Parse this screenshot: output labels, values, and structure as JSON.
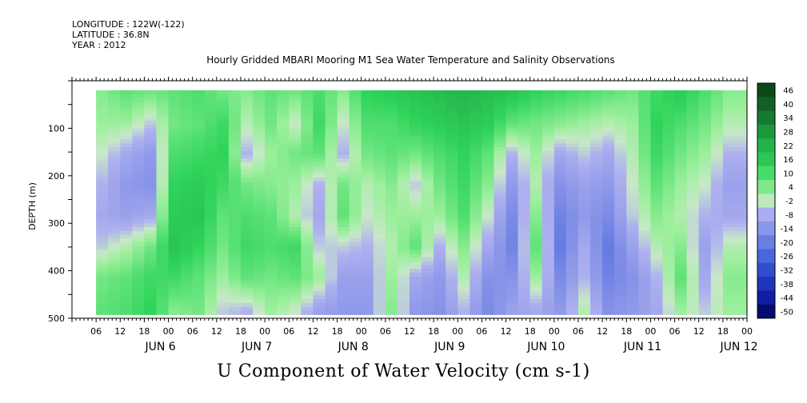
{
  "header": {
    "longitude": "LONGITUDE : 122W(-122)",
    "latitude": "LATITUDE : 36.8N",
    "year": "YEAR : 2012",
    "plot_title": "Hourly Gridded MBARI Mooring M1 Sea Water Temperature and Salinity Observations"
  },
  "variable_title": "U Component of Water Velocity (cm s-1)",
  "chart_data": {
    "type": "heatmap",
    "title": "Hourly Gridded MBARI Mooring M1 Sea Water Temperature and Salinity Observations",
    "subtitle": "U Component of Water Velocity (cm s-1)",
    "xlabel": "",
    "ylabel": "DEPTH (m)",
    "x_range_hours": [
      0,
      168
    ],
    "x_start": "2012-06-05 00:00",
    "y_range": [
      0,
      500
    ],
    "y_reversed": true,
    "y_ticks": [
      100,
      200,
      300,
      400,
      500
    ],
    "x_hour_labels": [
      "06",
      "12",
      "18",
      "00",
      "06",
      "12",
      "18",
      "00",
      "06",
      "12",
      "18",
      "00",
      "06",
      "12",
      "18",
      "00",
      "06",
      "12",
      "18",
      "00",
      "06",
      "12",
      "18",
      "00",
      "06",
      "12",
      "18",
      "00"
    ],
    "day_labels": [
      "JUN 6",
      "JUN 7",
      "JUN 8",
      "JUN 9",
      "JUN 10",
      "JUN 11",
      "JUN 12"
    ],
    "colorbar_levels": [
      46,
      40,
      34,
      28,
      22,
      16,
      10,
      4,
      -2,
      -8,
      -14,
      -20,
      -26,
      -32,
      -38,
      -44,
      -50
    ],
    "colorbar_range": [
      -50,
      52
    ],
    "colors": {
      "strong_positive": "#0b3d0b",
      "positive": "#22c44a",
      "weak_positive": "#8fe89a",
      "weak_negative": "#a9a9ee",
      "negative": "#3a5ad8",
      "strong_negative": "#00006a"
    },
    "column_profiles_description_values": [
      {
        "hour": 6,
        "u": [
          6,
          4,
          0,
          -4,
          -6,
          -2,
          8,
          10
        ]
      },
      {
        "hour": 12,
        "u": [
          10,
          4,
          -6,
          -10,
          -8,
          2,
          10,
          12
        ]
      },
      {
        "hour": 18,
        "u": [
          8,
          -2,
          -10,
          -12,
          -6,
          8,
          14,
          16
        ]
      },
      {
        "hour": 24,
        "u": [
          10,
          8,
          12,
          16,
          18,
          20,
          14,
          6
        ]
      },
      {
        "hour": 30,
        "u": [
          12,
          10,
          14,
          18,
          20,
          16,
          10,
          8
        ]
      },
      {
        "hour": 36,
        "u": [
          8,
          14,
          16,
          14,
          10,
          8,
          4,
          -2
        ]
      },
      {
        "hour": 42,
        "u": [
          6,
          2,
          -4,
          8,
          12,
          14,
          10,
          -4
        ]
      },
      {
        "hour": 48,
        "u": [
          10,
          8,
          4,
          6,
          10,
          12,
          8,
          4
        ]
      },
      {
        "hour": 54,
        "u": [
          8,
          0,
          8,
          4,
          2,
          14,
          10,
          0
        ]
      },
      {
        "hour": 60,
        "u": [
          12,
          14,
          10,
          -4,
          -6,
          -2,
          4,
          -8
        ]
      },
      {
        "hour": 66,
        "u": [
          6,
          0,
          -4,
          8,
          10,
          -2,
          -8,
          -10
        ]
      },
      {
        "hour": 72,
        "u": [
          16,
          12,
          8,
          2,
          0,
          -4,
          -8,
          -10
        ]
      },
      {
        "hour": 78,
        "u": [
          18,
          12,
          10,
          6,
          4,
          2,
          4,
          6
        ]
      },
      {
        "hour": 84,
        "u": [
          20,
          16,
          8,
          -2,
          4,
          10,
          -6,
          -10
        ]
      },
      {
        "hour": 90,
        "u": [
          22,
          18,
          12,
          8,
          4,
          -4,
          -10,
          -12
        ]
      },
      {
        "hour": 96,
        "u": [
          24,
          20,
          16,
          14,
          12,
          6,
          2,
          -4
        ]
      },
      {
        "hour": 102,
        "u": [
          22,
          18,
          10,
          6,
          0,
          -6,
          -12,
          -14
        ]
      },
      {
        "hour": 108,
        "u": [
          20,
          10,
          -4,
          -10,
          -14,
          -16,
          -12,
          -8
        ]
      },
      {
        "hour": 114,
        "u": [
          16,
          8,
          4,
          2,
          6,
          10,
          4,
          -6
        ]
      },
      {
        "hour": 120,
        "u": [
          14,
          6,
          -6,
          -12,
          -16,
          -18,
          -14,
          -10
        ]
      },
      {
        "hour": 126,
        "u": [
          12,
          4,
          -2,
          -8,
          -10,
          -6,
          -4,
          2
        ]
      },
      {
        "hour": 132,
        "u": [
          10,
          2,
          -6,
          -10,
          -14,
          -18,
          -16,
          -12
        ]
      },
      {
        "hour": 138,
        "u": [
          8,
          4,
          2,
          0,
          -2,
          -8,
          -12,
          -10
        ]
      },
      {
        "hour": 144,
        "u": [
          14,
          16,
          14,
          10,
          6,
          2,
          -4,
          -6
        ]
      },
      {
        "hour": 150,
        "u": [
          18,
          12,
          8,
          4,
          2,
          6,
          10,
          4
        ]
      },
      {
        "hour": 156,
        "u": [
          12,
          8,
          4,
          0,
          -4,
          -8,
          -6,
          -2
        ]
      },
      {
        "hour": 162,
        "u": [
          6,
          2,
          -4,
          -8,
          -6,
          2,
          6,
          4
        ]
      }
    ]
  }
}
